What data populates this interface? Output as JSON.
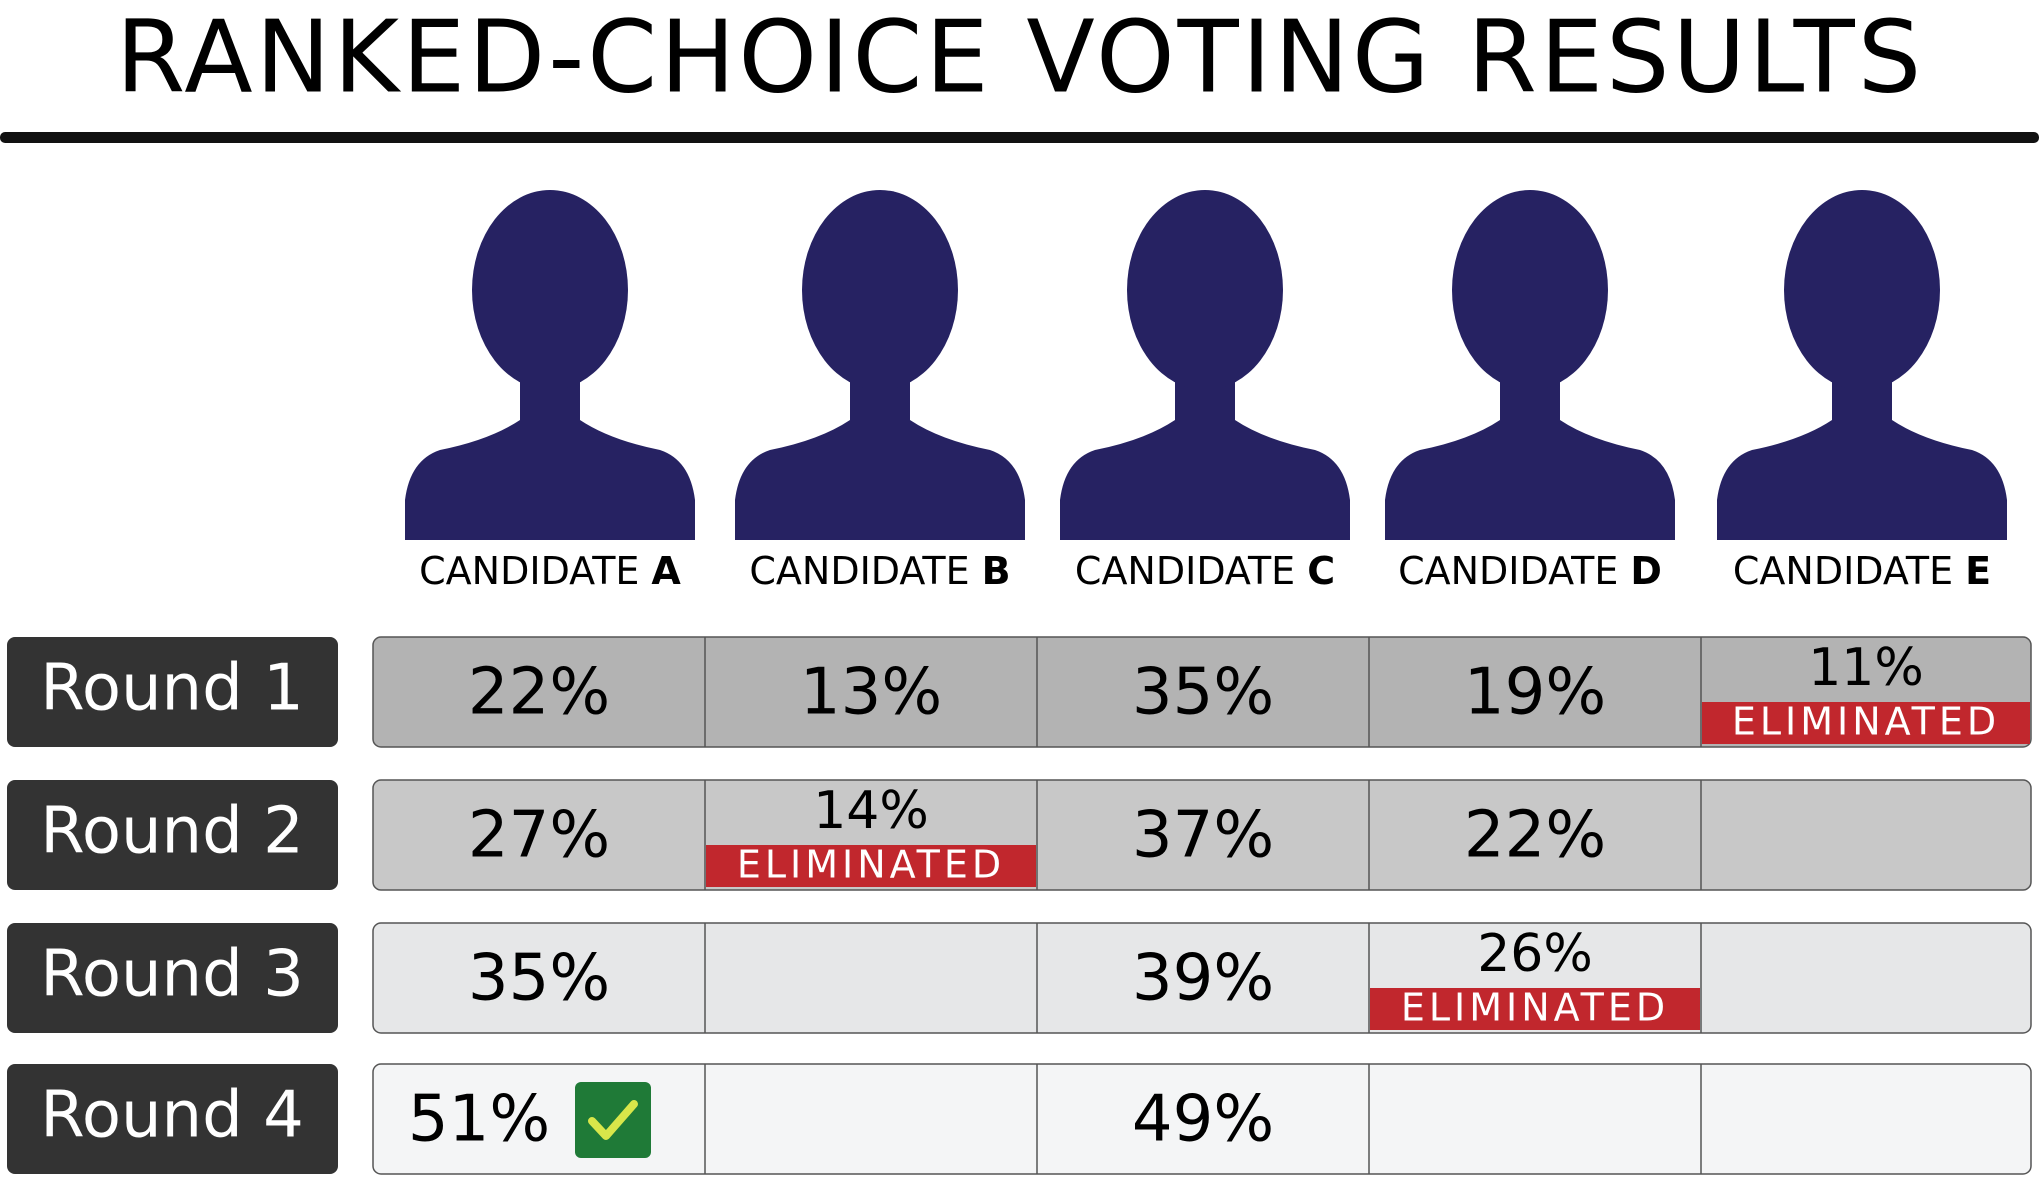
{
  "header": {
    "title": "RANKED-CHOICE VOTING RESULTS"
  },
  "candidates": [
    {
      "prefix": "CANDIDATE",
      "letter": "A"
    },
    {
      "prefix": "CANDIDATE",
      "letter": "B"
    },
    {
      "prefix": "CANDIDATE",
      "letter": "C"
    },
    {
      "prefix": "CANDIDATE",
      "letter": "D"
    },
    {
      "prefix": "CANDIDATE",
      "letter": "E"
    }
  ],
  "rounds": [
    {
      "label": "Round 1",
      "color": "#b3b3b3",
      "cells": [
        {
          "value": "22%"
        },
        {
          "value": "13%"
        },
        {
          "value": "35%"
        },
        {
          "value": "19%"
        },
        {
          "value": "11%",
          "status": "ELIMINATED"
        }
      ]
    },
    {
      "label": "Round 2",
      "color": "#c8c8c8",
      "cells": [
        {
          "value": "27%"
        },
        {
          "value": "14%",
          "status": "ELIMINATED"
        },
        {
          "value": "37%"
        },
        {
          "value": "22%"
        },
        null
      ]
    },
    {
      "label": "Round 3",
      "color": "#e6e7e8",
      "cells": [
        {
          "value": "35%"
        },
        null,
        {
          "value": "39%"
        },
        {
          "value": "26%",
          "status": "ELIMINATED"
        },
        null
      ]
    },
    {
      "label": "Round 4",
      "color": "#f4f5f6",
      "cells": [
        {
          "value": "51%",
          "winner": true
        },
        null,
        {
          "value": "49%"
        },
        null,
        null
      ]
    }
  ]
}
